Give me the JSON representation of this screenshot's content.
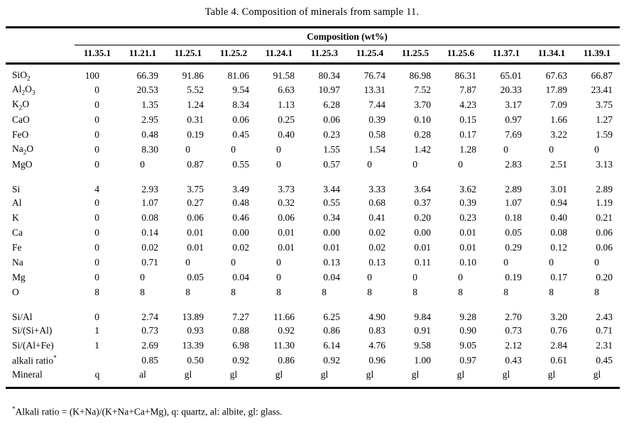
{
  "title": "Table 4. Composition of minerals from sample 11.",
  "table": {
    "group_header": "Composition (wt%)",
    "columns": [
      "11.35.1",
      "11.21.1",
      "11.25.1",
      "11.25.2",
      "11.24.1",
      "11.25.3",
      "11.25.4",
      "11.25.5",
      "11.25.6",
      "11.37.1",
      "11.34.1",
      "11.39.1"
    ],
    "sections": [
      {
        "name": "oxides",
        "rows": [
          {
            "label": "SiO2",
            "formula": true,
            "values": [
              "100",
              "66.39",
              "91.86",
              "81.06",
              "91.58",
              "80.34",
              "76.74",
              "86.98",
              "86.31",
              "65.01",
              "67.63",
              "66.87"
            ]
          },
          {
            "label": "Al2O3",
            "formula": true,
            "values": [
              "0",
              "20.53",
              "5.52",
              "9.54",
              "6.63",
              "10.97",
              "13.31",
              "7.52",
              "7.87",
              "20.33",
              "17.89",
              "23.41"
            ]
          },
          {
            "label": "K2O",
            "formula": true,
            "values": [
              "0",
              "1.35",
              "1.24",
              "8.34",
              "1.13",
              "6.28",
              "7.44",
              "3.70",
              "4.23",
              "3.17",
              "7.09",
              "3.75"
            ]
          },
          {
            "label": "CaO",
            "formula": true,
            "values": [
              "0",
              "2.95",
              "0.31",
              "0.06",
              "0.25",
              "0.06",
              "0.39",
              "0.10",
              "0.15",
              "0.97",
              "1.66",
              "1.27"
            ]
          },
          {
            "label": "FeO",
            "formula": true,
            "values": [
              "0",
              "0.48",
              "0.19",
              "0.45",
              "0.40",
              "0.23",
              "0.58",
              "0.28",
              "0.17",
              "7.69",
              "3.22",
              "1.59"
            ]
          },
          {
            "label": "Na2O",
            "formula": true,
            "values": [
              "0",
              "8.30",
              "0",
              "0",
              "0",
              "1.55",
              "1.54",
              "1.42",
              "1.28",
              "0",
              "0",
              "0"
            ]
          },
          {
            "label": "MgO",
            "formula": true,
            "values": [
              "0",
              "0",
              "0.87",
              "0.55",
              "0",
              "0.57",
              "0",
              "0",
              "0",
              "2.83",
              "2.51",
              "3.13"
            ]
          }
        ]
      },
      {
        "name": "atoms-per-formula-unit",
        "rows": [
          {
            "label": "Si",
            "values": [
              "4",
              "2.93",
              "3.75",
              "3.49",
              "3.73",
              "3.44",
              "3.33",
              "3.64",
              "3.62",
              "2.89",
              "3.01",
              "2.89"
            ]
          },
          {
            "label": "Al",
            "values": [
              "0",
              "1.07",
              "0.27",
              "0.48",
              "0.32",
              "0.55",
              "0.68",
              "0.37",
              "0.39",
              "1.07",
              "0.94",
              "1.19"
            ]
          },
          {
            "label": "K",
            "values": [
              "0",
              "0.08",
              "0.06",
              "0.46",
              "0.06",
              "0.34",
              "0.41",
              "0.20",
              "0.23",
              "0.18",
              "0.40",
              "0.21"
            ]
          },
          {
            "label": "Ca",
            "values": [
              "0",
              "0.14",
              "0.01",
              "0.00",
              "0.01",
              "0.00",
              "0.02",
              "0.00",
              "0.01",
              "0.05",
              "0.08",
              "0.06"
            ]
          },
          {
            "label": "Fe",
            "values": [
              "0",
              "0.02",
              "0.01",
              "0.02",
              "0.01",
              "0.01",
              "0.02",
              "0.01",
              "0.01",
              "0.29",
              "0.12",
              "0.06"
            ]
          },
          {
            "label": "Na",
            "values": [
              "0",
              "0.71",
              "0",
              "0",
              "0",
              "0.13",
              "0.13",
              "0.11",
              "0.10",
              "0",
              "0",
              "0"
            ]
          },
          {
            "label": "Mg",
            "values": [
              "0",
              "0",
              "0.05",
              "0.04",
              "0",
              "0.04",
              "0",
              "0",
              "0",
              "0.19",
              "0.17",
              "0.20"
            ]
          },
          {
            "label": "O",
            "values": [
              "8",
              "8",
              "8",
              "8",
              "8",
              "8",
              "8",
              "8",
              "8",
              "8",
              "8",
              "8"
            ]
          }
        ]
      },
      {
        "name": "ratios-and-mineral",
        "rows": [
          {
            "label": "Si/Al",
            "values": [
              "0",
              "2.74",
              "13.89",
              "7.27",
              "11.66",
              "6.25",
              "4.90",
              "9.84",
              "9.28",
              "2.70",
              "3.20",
              "2.43"
            ]
          },
          {
            "label": "Si/(Si+Al)",
            "values": [
              "1",
              "0.73",
              "0.93",
              "0.88",
              "0.92",
              "0.86",
              "0.83",
              "0.91",
              "0.90",
              "0.73",
              "0.76",
              "0.71"
            ]
          },
          {
            "label": "Si/(Al+Fe)",
            "values": [
              "1",
              "2.69",
              "13.39",
              "6.98",
              "11.30",
              "6.14",
              "4.76",
              "9.58",
              "9.05",
              "2.12",
              "2.84",
              "2.31"
            ]
          },
          {
            "label": "alkali ratio",
            "sup": "*",
            "values": [
              "",
              "0.85",
              "0.50",
              "0.92",
              "0.86",
              "0.92",
              "0.96",
              "1.00",
              "0.97",
              "0.43",
              "0.61",
              "0.45"
            ]
          },
          {
            "label": "Mineral",
            "values": [
              "q",
              "al",
              "gl",
              "gl",
              "gl",
              "gl",
              "gl",
              "gl",
              "gl",
              "gl",
              "gl",
              "gl"
            ]
          }
        ]
      }
    ]
  },
  "footnote": {
    "sup": "*",
    "text": "Alkali ratio = (K+Na)/(K+Na+Ca+Mg), q: quartz, al: albite, gl: glass."
  }
}
